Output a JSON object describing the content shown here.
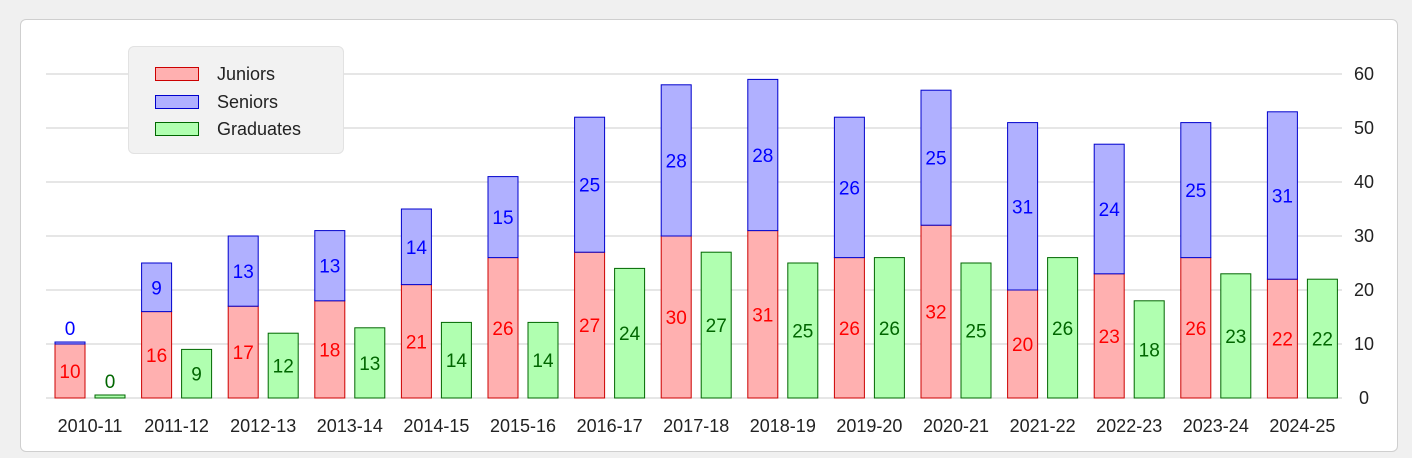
{
  "chart_data": {
    "type": "bar",
    "categories": [
      "2010-11",
      "2011-12",
      "2012-13",
      "2013-14",
      "2014-15",
      "2015-16",
      "2016-17",
      "2017-18",
      "2018-19",
      "2019-20",
      "2020-21",
      "2021-22",
      "2022-23",
      "2023-24",
      "2024-25"
    ],
    "series": [
      {
        "name": "Juniors",
        "stack": "A",
        "values": [
          10,
          16,
          17,
          18,
          21,
          26,
          27,
          30,
          31,
          26,
          32,
          20,
          23,
          26,
          22
        ],
        "fill": "#ffb0b0",
        "stroke": "#cc0000",
        "label_color": "#ff0000"
      },
      {
        "name": "Seniors",
        "stack": "A",
        "values": [
          0,
          9,
          13,
          13,
          14,
          15,
          25,
          28,
          28,
          26,
          25,
          31,
          24,
          25,
          31
        ],
        "fill": "#b0b0ff",
        "stroke": "#0000cc",
        "label_color": "#0000ff"
      },
      {
        "name": "Graduates",
        "stack": "B",
        "values": [
          0,
          9,
          12,
          13,
          14,
          14,
          24,
          27,
          25,
          26,
          25,
          26,
          18,
          23,
          22
        ],
        "fill": "#b0ffb0",
        "stroke": "#006600",
        "label_color": "#006600"
      }
    ],
    "y_ticks": [
      "0",
      "10",
      "20",
      "30",
      "40",
      "50",
      "60"
    ],
    "ylim": [
      0,
      60
    ],
    "y_axis_side": "right",
    "grid": true,
    "legend_position": "top-left",
    "title": "",
    "xlabel": "",
    "ylabel": ""
  }
}
